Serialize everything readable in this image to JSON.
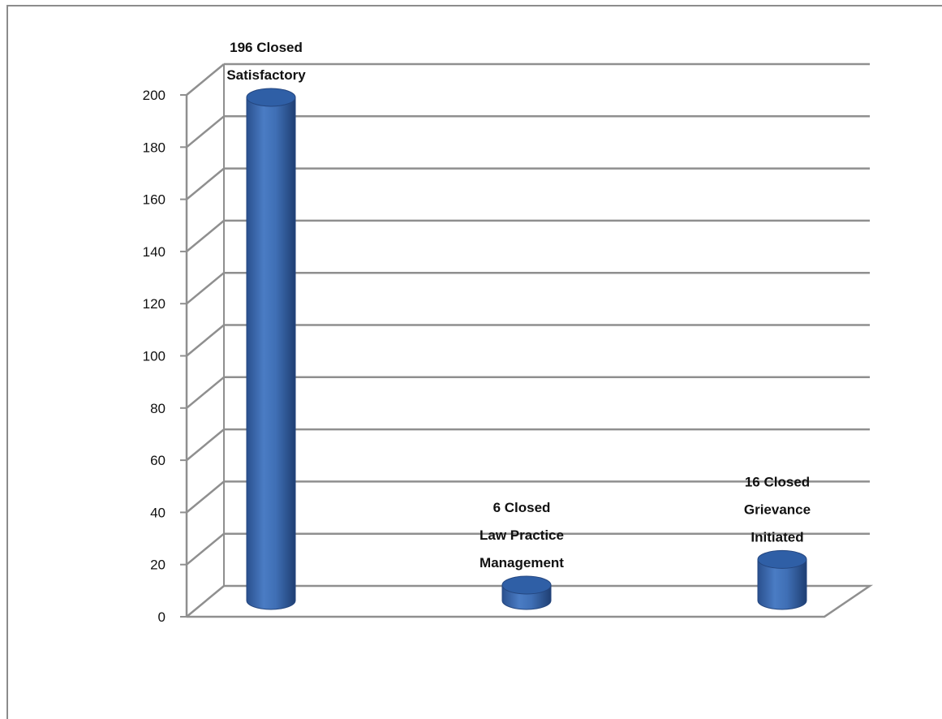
{
  "chart_data": {
    "type": "bar",
    "style": "3d-cylinder",
    "categories": [
      "",
      "",
      ""
    ],
    "values": [
      196,
      6,
      16
    ],
    "data_labels": [
      [
        "196 Closed",
        "Satisfactory"
      ],
      [
        "6 Closed",
        "Law Practice",
        "Management"
      ],
      [
        "16 Closed",
        "Grievance",
        "Initiated"
      ]
    ],
    "ylim": [
      0,
      200
    ],
    "yticks": [
      0,
      20,
      40,
      60,
      80,
      100,
      120,
      140,
      160,
      180,
      200
    ],
    "grid": true,
    "legend": "none",
    "bar_color": "#3f6fb5"
  }
}
